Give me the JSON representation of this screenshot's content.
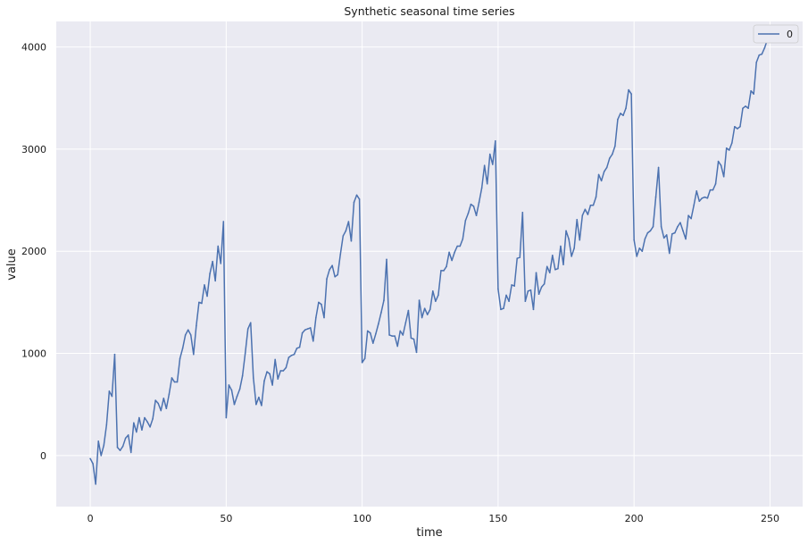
{
  "chart_data": {
    "type": "line",
    "title": "Synthetic seasonal time series",
    "xlabel": "time",
    "ylabel": "value",
    "xlim": [
      -12.5,
      262
    ],
    "ylim": [
      -500,
      4250
    ],
    "xticks": [
      0,
      50,
      100,
      150,
      200,
      250
    ],
    "yticks": [
      0,
      1000,
      2000,
      3000,
      4000
    ],
    "grid": true,
    "legend_position": "top-right",
    "colors": {
      "background": "#eaeaf2",
      "grid": "#ffffff",
      "series": "#4c72b0"
    },
    "series": [
      {
        "name": "0",
        "x": [
          0,
          1,
          2,
          3,
          4,
          5,
          6,
          7,
          8,
          9,
          10,
          11,
          12,
          13,
          14,
          15,
          16,
          17,
          18,
          19,
          20,
          21,
          22,
          23,
          24,
          25,
          26,
          27,
          28,
          29,
          30,
          31,
          32,
          33,
          34,
          35,
          36,
          37,
          38,
          39,
          40,
          41,
          42,
          43,
          44,
          45,
          46,
          47,
          48,
          49,
          50,
          51,
          52,
          53,
          54,
          55,
          56,
          57,
          58,
          59,
          60,
          61,
          62,
          63,
          64,
          65,
          66,
          67,
          68,
          69,
          70,
          71,
          72,
          73,
          74,
          75,
          76,
          77,
          78,
          79,
          80,
          81,
          82,
          83,
          84,
          85,
          86,
          87,
          88,
          89,
          90,
          91,
          92,
          93,
          94,
          95,
          96,
          97,
          98,
          99,
          100,
          101,
          102,
          103,
          104,
          105,
          106,
          107,
          108,
          109,
          110,
          111,
          112,
          113,
          114,
          115,
          116,
          117,
          118,
          119,
          120,
          121,
          122,
          123,
          124,
          125,
          126,
          127,
          128,
          129,
          130,
          131,
          132,
          133,
          134,
          135,
          136,
          137,
          138,
          139,
          140,
          141,
          142,
          143,
          144,
          145,
          146,
          147,
          148,
          149,
          150,
          151,
          152,
          153,
          154,
          155,
          156,
          157,
          158,
          159,
          160,
          161,
          162,
          163,
          164,
          165,
          166,
          167,
          168,
          169,
          170,
          171,
          172,
          173,
          174,
          175,
          176,
          177,
          178,
          179,
          180,
          181,
          182,
          183,
          184,
          185,
          186,
          187,
          188,
          189,
          190,
          191,
          192,
          193,
          194,
          195,
          196,
          197,
          198,
          199,
          200,
          201,
          202,
          203,
          204,
          205,
          206,
          207,
          208,
          209,
          210,
          211,
          212,
          213,
          214,
          215,
          216,
          217,
          218,
          219,
          220,
          221,
          222,
          223,
          224,
          225,
          226,
          227,
          228,
          229,
          230,
          231,
          232,
          233,
          234,
          235,
          236,
          237,
          238,
          239,
          240,
          241,
          242,
          243,
          244,
          245,
          246,
          247,
          248,
          249
        ],
        "values": [
          -30,
          -80,
          -280,
          140,
          0,
          100,
          300,
          630,
          580,
          990,
          80,
          50,
          90,
          170,
          200,
          30,
          320,
          230,
          370,
          250,
          370,
          330,
          280,
          360,
          540,
          510,
          440,
          560,
          460,
          600,
          760,
          720,
          720,
          950,
          1050,
          1180,
          1230,
          1180,
          990,
          1270,
          1500,
          1490,
          1670,
          1560,
          1780,
          1900,
          1710,
          2050,
          1880,
          2290,
          370,
          690,
          640,
          500,
          580,
          650,
          780,
          1000,
          1240,
          1300,
          760,
          500,
          570,
          490,
          730,
          820,
          800,
          690,
          940,
          750,
          830,
          830,
          860,
          960,
          980,
          990,
          1050,
          1060,
          1200,
          1230,
          1240,
          1250,
          1120,
          1350,
          1500,
          1480,
          1350,
          1730,
          1820,
          1860,
          1750,
          1770,
          1970,
          2150,
          2200,
          2290,
          2100,
          2480,
          2550,
          2510,
          910,
          950,
          1220,
          1200,
          1100,
          1190,
          1290,
          1400,
          1520,
          1920,
          1180,
          1170,
          1170,
          1070,
          1220,
          1180,
          1300,
          1420,
          1150,
          1140,
          1010,
          1520,
          1350,
          1440,
          1380,
          1430,
          1610,
          1510,
          1570,
          1810,
          1810,
          1850,
          1990,
          1910,
          1990,
          2050,
          2050,
          2120,
          2300,
          2370,
          2460,
          2440,
          2350,
          2480,
          2620,
          2840,
          2660,
          2950,
          2850,
          3080,
          1630,
          1430,
          1440,
          1570,
          1510,
          1670,
          1660,
          1930,
          1940,
          2380,
          1510,
          1610,
          1620,
          1430,
          1790,
          1580,
          1650,
          1680,
          1850,
          1790,
          1960,
          1820,
          1830,
          2050,
          1870,
          2200,
          2120,
          1950,
          2030,
          2310,
          2110,
          2350,
          2410,
          2360,
          2450,
          2450,
          2530,
          2750,
          2690,
          2780,
          2820,
          2910,
          2950,
          3030,
          3290,
          3350,
          3330,
          3400,
          3580,
          3540,
          2110,
          1950,
          2030,
          2000,
          2120,
          2180,
          2200,
          2240,
          2530,
          2820,
          2240,
          2130,
          2160,
          1980,
          2170,
          2180,
          2240,
          2280,
          2200,
          2120,
          2350,
          2320,
          2450,
          2590,
          2490,
          2520,
          2530,
          2520,
          2600,
          2600,
          2660,
          2880,
          2840,
          2730,
          3010,
          2990,
          3060,
          3220,
          3200,
          3220,
          3400,
          3420,
          3400,
          3570,
          3540,
          3850,
          3920,
          3930,
          3990,
          4070
        ]
      }
    ]
  }
}
